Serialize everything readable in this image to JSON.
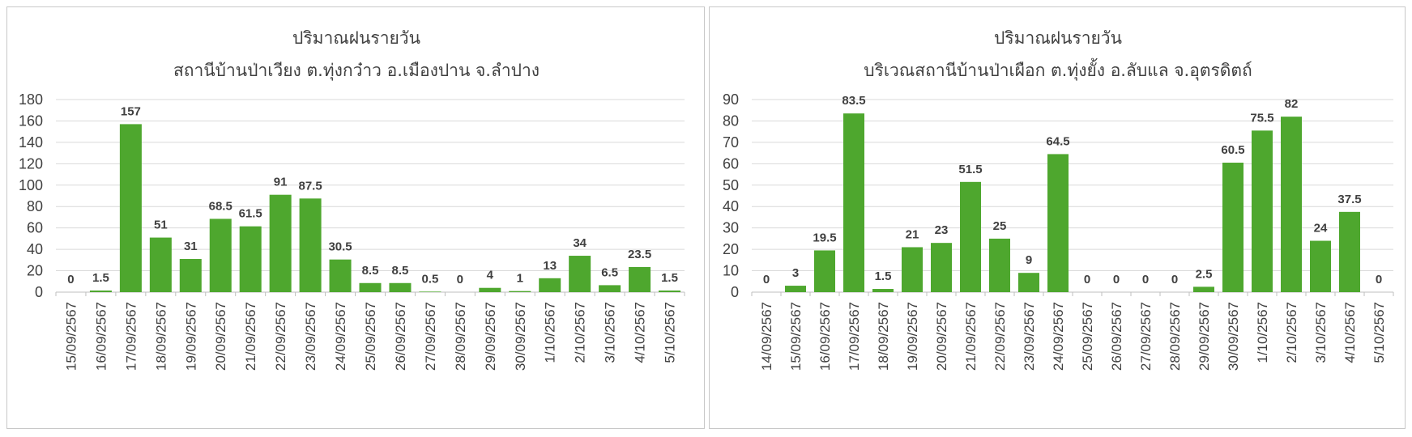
{
  "chart_data": [
    {
      "type": "bar",
      "title": "ปริมาณฝนรายวัน",
      "subtitle": "สถานีบ้านป่าเวียง ต.ทุ่งกว๋าว อ.เมืองปาน จ.ลำปาง",
      "categories": [
        "15/09/2567",
        "16/09/2567",
        "17/09/2567",
        "18/09/2567",
        "19/09/2567",
        "20/09/2567",
        "21/09/2567",
        "22/09/2567",
        "23/09/2567",
        "24/09/2567",
        "25/09/2567",
        "26/09/2567",
        "27/09/2567",
        "28/09/2567",
        "29/09/2567",
        "30/09/2567",
        "1/10/2567",
        "2/10/2567",
        "3/10/2567",
        "4/10/2567",
        "5/10/2567"
      ],
      "values": [
        0,
        1.5,
        157,
        51,
        31,
        68.5,
        61.5,
        91,
        87.5,
        30.5,
        8.5,
        8.5,
        0.5,
        0,
        4,
        1,
        13,
        34,
        6.5,
        23.5,
        1.5
      ],
      "yticks": [
        0,
        20,
        40,
        60,
        80,
        100,
        120,
        140,
        160,
        180
      ],
      "ylim": [
        0,
        180
      ],
      "grid": true,
      "color": "#4ea72e"
    },
    {
      "type": "bar",
      "title": "ปริมาณฝนรายวัน",
      "subtitle": "บริเวณสถานีบ้านป่าเผือก ต.ทุ่งยั้ง อ.ลับแล จ.อุตรดิตถ์",
      "categories": [
        "14/09/2567",
        "15/09/2567",
        "16/09/2567",
        "17/09/2567",
        "18/09/2567",
        "19/09/2567",
        "20/09/2567",
        "21/09/2567",
        "22/09/2567",
        "23/09/2567",
        "24/09/2567",
        "25/09/2567",
        "26/09/2567",
        "27/09/2567",
        "28/09/2567",
        "29/09/2567",
        "30/09/2567",
        "1/10/2567",
        "2/10/2567",
        "3/10/2567",
        "4/10/2567",
        "5/10/2567"
      ],
      "values": [
        0,
        3,
        19.5,
        83.5,
        1.5,
        21,
        23,
        51.5,
        25,
        9,
        64.5,
        0,
        0,
        0,
        0,
        2.5,
        60.5,
        75.5,
        82,
        24,
        37.5,
        0
      ],
      "yticks": [
        0,
        10,
        20,
        30,
        40,
        50,
        60,
        70,
        80,
        90
      ],
      "ylim": [
        0,
        90
      ],
      "grid": true,
      "color": "#4ea72e"
    }
  ]
}
